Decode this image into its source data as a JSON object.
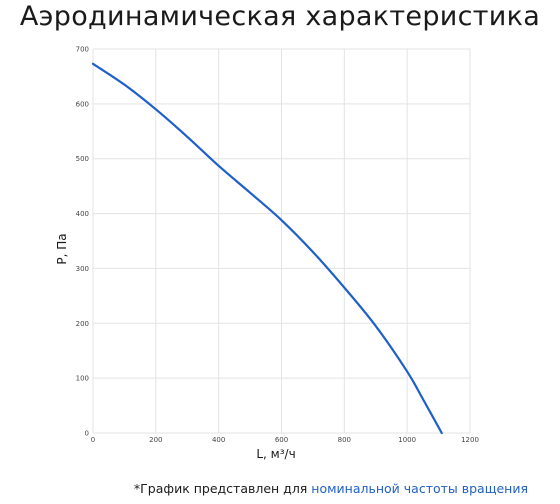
{
  "title": "Аэродинамическая характеристика",
  "footnote": {
    "prefix": "*График представлен для ",
    "highlight": "номинальной частоты вращения"
  },
  "colors": {
    "line": "#1f5fc9",
    "grid": "#e3e3e3",
    "highlight": "#1f5fc9"
  },
  "chart_data": {
    "type": "line",
    "xlabel": "L, м³/ч",
    "ylabel": "P, Па",
    "xlim": [
      0,
      1200
    ],
    "ylim": [
      0,
      700
    ],
    "xticks": [
      0,
      200,
      400,
      600,
      800,
      1000,
      1200
    ],
    "yticks": [
      0,
      100,
      200,
      300,
      400,
      500,
      600,
      700
    ],
    "grid": true,
    "series": [
      {
        "x": [
          0,
          100,
          200,
          300,
          400,
          500,
          600,
          700,
          800,
          900,
          1000,
          1050,
          1110
        ],
        "y": [
          673,
          635,
          590,
          540,
          487,
          438,
          388,
          330,
          265,
          195,
          112,
          62,
          0
        ]
      }
    ]
  }
}
